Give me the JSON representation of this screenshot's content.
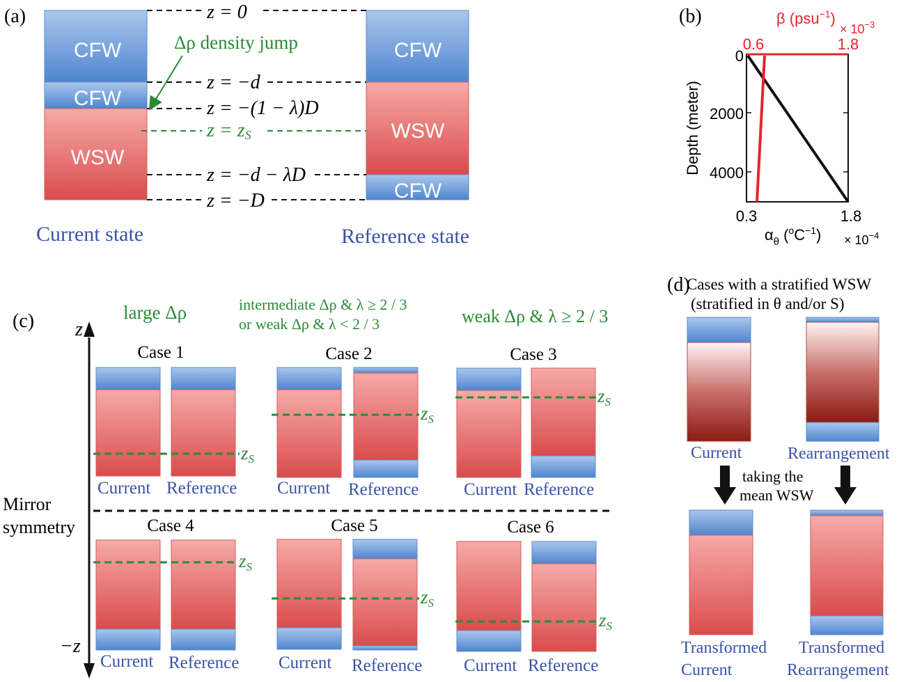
{
  "panel_a": {
    "label": "(a)",
    "box_cfw": "CFW",
    "box_wsw": "WSW",
    "jump_label": "Δρ density jump",
    "z0": "z = 0",
    "z_d": "z = −d",
    "z_lambda": "z = −(1 − λ)D",
    "z_s": "z = z",
    "z_s_sub": "S",
    "z_dlD": "z = −d − λD",
    "z_D": "z = −D",
    "current": "Current state",
    "reference": "Reference  state"
  },
  "panel_b": {
    "label": "(b)",
    "beta_label": "β (psu",
    "beta_sup": "−1",
    "beta_close": ")",
    "beta_scale": "× 10",
    "beta_scale_exp": "−3",
    "top_ticks": [
      "0.6",
      "1.8"
    ],
    "bottom_ticks": [
      "0.3",
      "1.8"
    ],
    "y_ticks": [
      "0",
      "2000",
      "4000"
    ],
    "ylabel": "Depth (meter)",
    "alpha_label": "α",
    "alpha_sub": "θ",
    "alpha_unit": "(",
    "alpha_unit_sup": "o",
    "alpha_unit_rest": "C",
    "alpha_unit_sup2": "−1",
    "alpha_unit_close": ")",
    "alpha_scale": "× 10",
    "alpha_scale_exp": "−4"
  },
  "panel_c": {
    "label": "(c)",
    "axis_top": "z",
    "axis_bottom": "−z",
    "mirror1": "Mirror",
    "mirror2": "symmetry",
    "head1": "large Δρ",
    "head2a": "intermediate Δρ & λ ≥ 2 / 3",
    "head2b": "or weak  Δρ & λ < 2 / 3",
    "head3": "weak  Δρ & λ ≥ 2 / 3",
    "cases": [
      "Case 1",
      "Case 2",
      "Case 3",
      "Case 4",
      "Case 5",
      "Case 6"
    ],
    "current": "Current",
    "reference": "Reference",
    "zs": "z",
    "zs_sub": "S"
  },
  "panel_d": {
    "label": "(d)",
    "title1": "Cases with a stratified WSW",
    "title2": "(stratified in θ and/or S)",
    "current": "Current",
    "rearrangement": "Rearrangement",
    "mid1": "taking the",
    "mid2": "mean WSW",
    "transformed": "Transformed",
    "t_current": "Current",
    "t_rearrangement": "Rearrangement"
  },
  "colors": {
    "cfw_blue": "#5b8fd4",
    "wsw_red": "#e05a5a",
    "green": "#2a8a36",
    "red": "#e8232a",
    "label_blue": "#3a52a8"
  }
}
